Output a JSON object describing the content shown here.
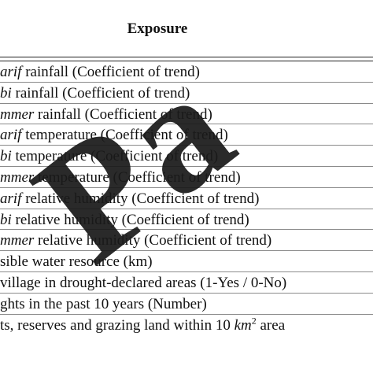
{
  "header": {
    "title": "Exposure"
  },
  "rows": [
    {
      "lead": "arif",
      "rest": " rainfall (Coefficient of trend)"
    },
    {
      "lead": "bi",
      "rest": " rainfall (Coefficient of trend)"
    },
    {
      "lead": "mmer",
      "rest": " rainfall (Coefficient of trend)"
    },
    {
      "lead": "arif",
      "rest": " temperature (Coefficient of trend)"
    },
    {
      "lead": "bi",
      "rest": " temperature (Coefficient of trend)"
    },
    {
      "lead": "mmer",
      "rest": " temperature (Coefficient of trend)"
    },
    {
      "lead": "arif",
      "rest": " relative humidity (Coefficient of trend)"
    },
    {
      "lead": "bi",
      "rest": " relative humidity (Coefficient of trend)"
    },
    {
      "lead": "mmer",
      "rest": " relative humidity (Coefficient of trend)"
    },
    {
      "lead": "",
      "rest": "sible water resource (km)"
    },
    {
      "lead": "",
      "rest": " village in drought-declared areas (1-Yes / 0-No)"
    },
    {
      "lead": "",
      "rest": "ghts in the past 10 years (Number)"
    },
    {
      "lead": "",
      "rest": "ts, reserves and grazing land within 10 ",
      "math": "km",
      "sup": "2",
      "tail": " area"
    }
  ],
  "watermark": {
    "text": "Pa"
  }
}
